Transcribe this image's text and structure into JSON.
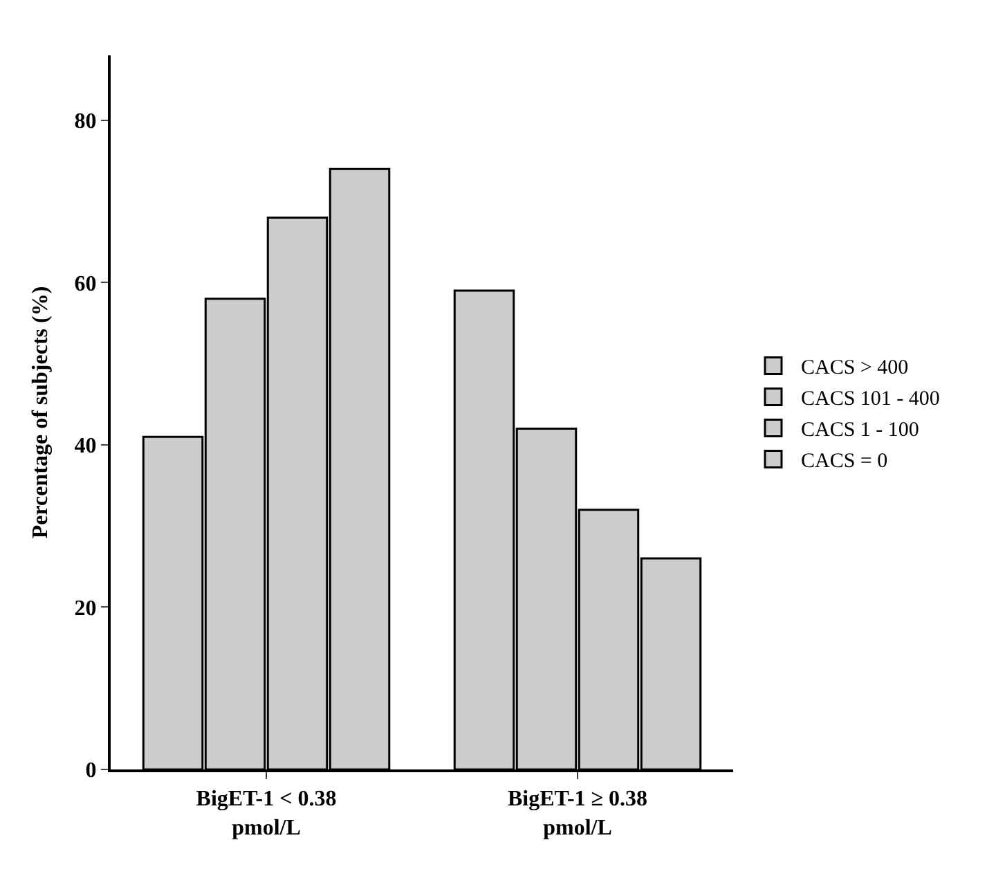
{
  "chart_data": {
    "type": "bar",
    "ylabel": "Percentage of subjects (%)",
    "categories": [
      "BigET-1 < 0.38\npmol/L",
      "BigET-1 ≥ 0.38\npmol/L"
    ],
    "series": [
      {
        "name": "CACS > 400",
        "color": "#cccccc",
        "values": [
          41,
          59
        ]
      },
      {
        "name": "CACS 101 - 400",
        "color": "#cccccc",
        "values": [
          58,
          42
        ]
      },
      {
        "name": "CACS 1 - 100",
        "color": "#cccccc",
        "values": [
          68,
          32
        ]
      },
      {
        "name": "CACS = 0",
        "color": "#cccccc",
        "values": [
          74,
          26
        ]
      }
    ],
    "ylim": [
      0,
      88
    ],
    "yticks": [
      0,
      20,
      40,
      60,
      80
    ],
    "legend": "right"
  }
}
